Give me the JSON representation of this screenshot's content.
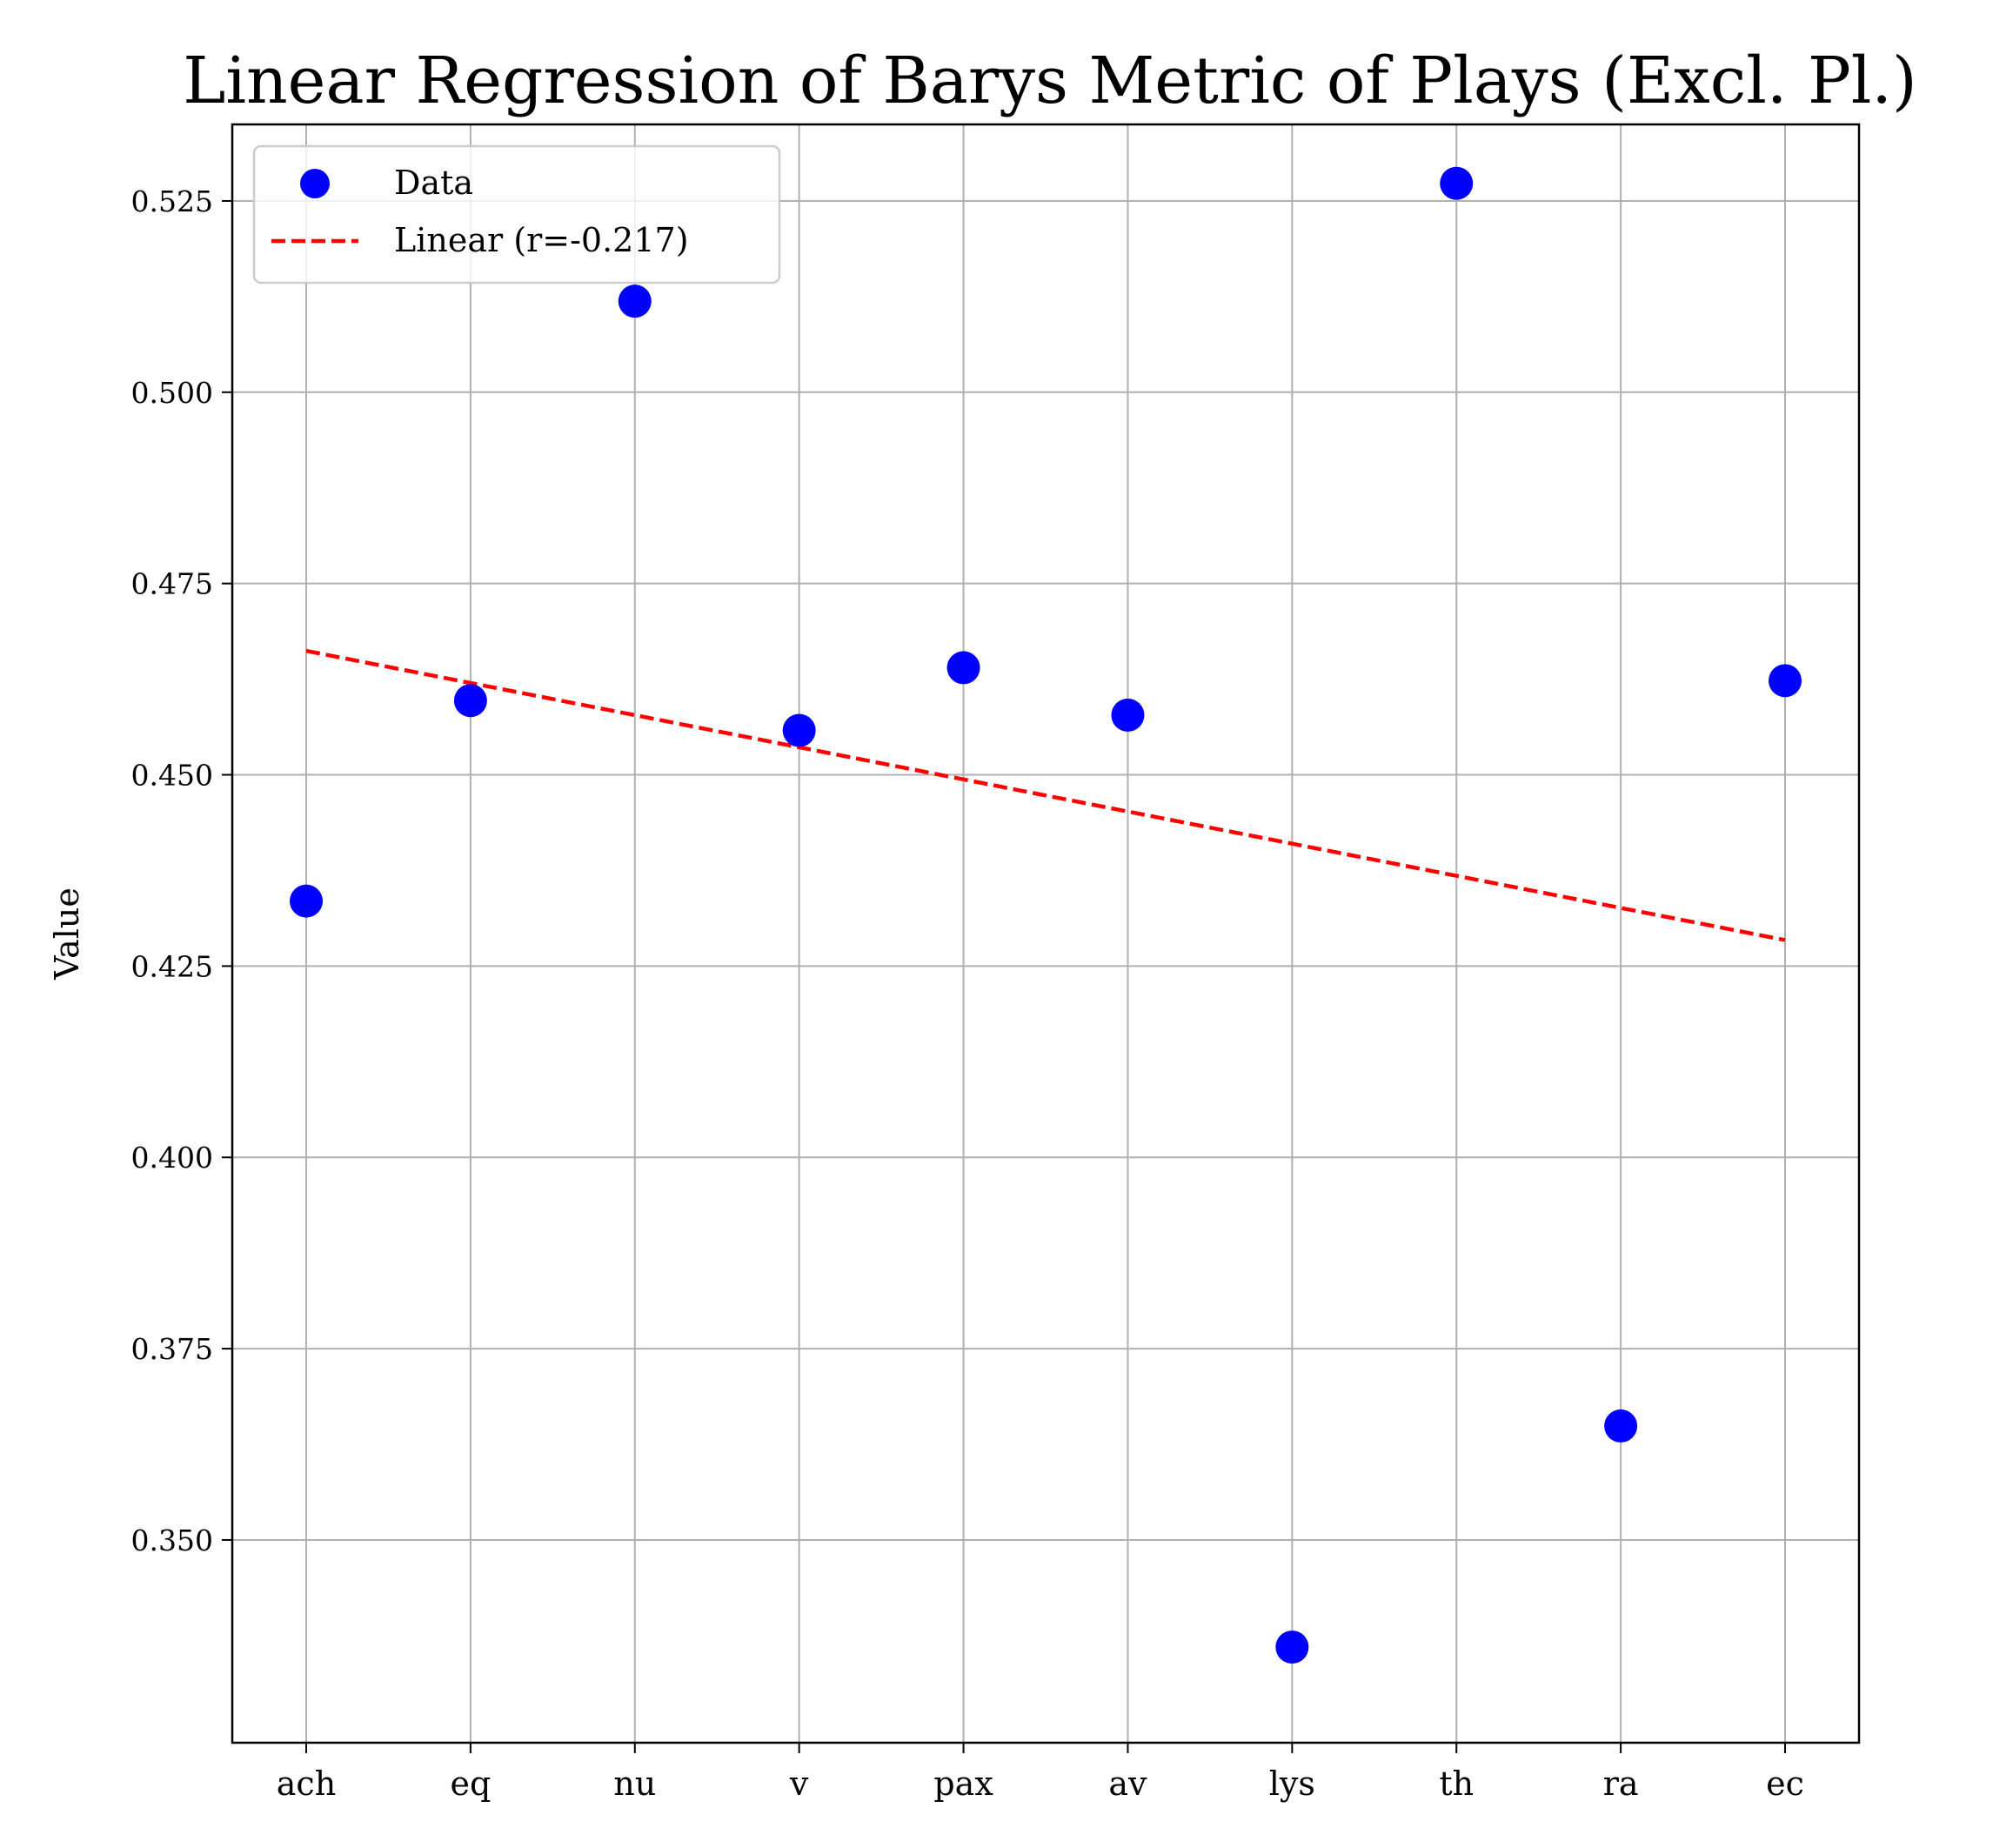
{
  "chart_data": {
    "type": "scatter",
    "title": "Linear Regression of Barys Metric of Plays (Excl. Pl.)",
    "xlabel": "",
    "ylabel": "Value",
    "categories": [
      "ach",
      "eq",
      "nu",
      "v",
      "pax",
      "av",
      "lys",
      "th",
      "ra",
      "ec"
    ],
    "series": [
      {
        "name": "Data",
        "kind": "scatter",
        "color": "#0000ff",
        "values": [
          0.4335,
          0.4597,
          0.5119,
          0.4558,
          0.464,
          0.4578,
          0.336,
          0.5273,
          0.3649,
          0.4623
        ]
      },
      {
        "name": "Linear (r=-0.217)",
        "kind": "line",
        "style": "dashed",
        "color": "#ff0000",
        "values": [
          0.4662,
          0.462,
          0.4578,
          0.4536,
          0.4494,
          0.4452,
          0.441,
          0.4368,
          0.4326,
          0.4284
        ]
      }
    ],
    "ylim": [
      0.3235,
      0.535
    ],
    "yticks": [
      "0.350",
      "0.375",
      "0.400",
      "0.425",
      "0.450",
      "0.475",
      "0.500",
      "0.525"
    ],
    "grid": true,
    "legend": "top-left"
  }
}
